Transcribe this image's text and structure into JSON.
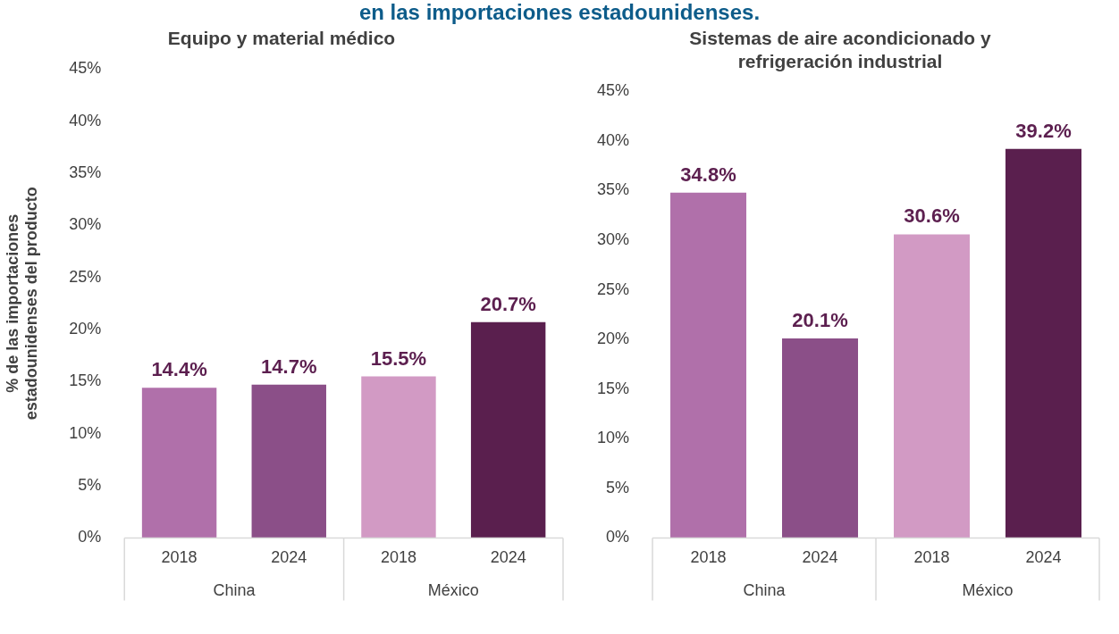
{
  "chart_data": [
    {
      "type": "bar",
      "title": "Equipo y material médico",
      "ylabel": "% de las importaciones estadounidenses del producto",
      "categories": [
        "2018",
        "2024",
        "2018",
        "2024"
      ],
      "annotations": [
        "China",
        "México",
        "en las importaciones estadounidenses."
      ],
      "values": [
        14.4,
        14.7,
        15.5,
        20.7
      ],
      "colors": [
        "#b070aa",
        "#8b4f88",
        "#d29ac4",
        "#5a1f4e"
      ],
      "value_labels": [
        "14.4%",
        "14.7%",
        "15.5%",
        "20.7%"
      ],
      "ylim": [
        0,
        45
      ],
      "yticks": [
        {
          "value": 0,
          "label": "0%"
        },
        {
          "value": 5,
          "label": "5%"
        },
        {
          "value": 10,
          "label": "10%"
        },
        {
          "value": 15,
          "label": "15%"
        },
        {
          "value": 20,
          "label": "20%"
        },
        {
          "value": 25,
          "label": "25%"
        },
        {
          "value": 30,
          "label": "30%"
        },
        {
          "value": 35,
          "label": "35%"
        },
        {
          "value": 40,
          "label": "40%"
        },
        {
          "value": 45,
          "label": "45%"
        }
      ],
      "grid": false,
      "legend": false
    },
    {
      "type": "bar",
      "title": "Sistemas de aire acondicionado y refrigeración industrial",
      "categories": [
        "2018",
        "2024",
        "2018",
        "2024"
      ],
      "annotations": [
        "China",
        "México"
      ],
      "values": [
        34.8,
        20.1,
        30.6,
        39.2
      ],
      "colors": [
        "#b070aa",
        "#8b4f88",
        "#d29ac4",
        "#5a1f4e"
      ],
      "value_labels": [
        "34.8%",
        "20.1%",
        "30.6%",
        "39.2%"
      ],
      "ylim": [
        0,
        45
      ],
      "yticks": [
        {
          "value": 0,
          "label": "0%"
        },
        {
          "value": 5,
          "label": "5%"
        },
        {
          "value": 10,
          "label": "10%"
        },
        {
          "value": 15,
          "label": "15%"
        },
        {
          "value": 20,
          "label": "20%"
        },
        {
          "value": 25,
          "label": "25%"
        },
        {
          "value": 30,
          "label": "30%"
        },
        {
          "value": 35,
          "label": "35%"
        },
        {
          "value": 40,
          "label": "40%"
        },
        {
          "value": 45,
          "label": "45%"
        }
      ],
      "grid": false,
      "legend": false
    }
  ]
}
